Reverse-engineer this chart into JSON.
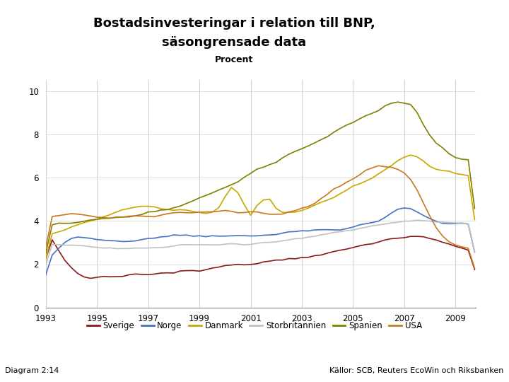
{
  "title_line1": "Bostadsinvesteringar i relation till BNP,",
  "title_line2": "säsongrensade data",
  "subtitle": "Procent",
  "ylim": [
    0,
    10.5
  ],
  "yticks": [
    0,
    2,
    4,
    6,
    8,
    10
  ],
  "xlim": [
    1993.0,
    2009.8
  ],
  "xticks": [
    1993,
    1995,
    1997,
    1999,
    2001,
    2003,
    2005,
    2007,
    2009
  ],
  "background_color": "#ffffff",
  "footer_bar_color": "#1a3a6b",
  "series_colors": {
    "Sverige": "#8b1a1a",
    "Norge": "#4472c4",
    "Danmark": "#c8a800",
    "Storbritannien": "#c0c0c0",
    "Spanien": "#808000",
    "USA": "#c87820"
  },
  "linewidth": 1.2,
  "diagram_label": "Diagram 2:14",
  "source_label": "Källor: SCB, Reuters EcoWin och Riksbanken"
}
